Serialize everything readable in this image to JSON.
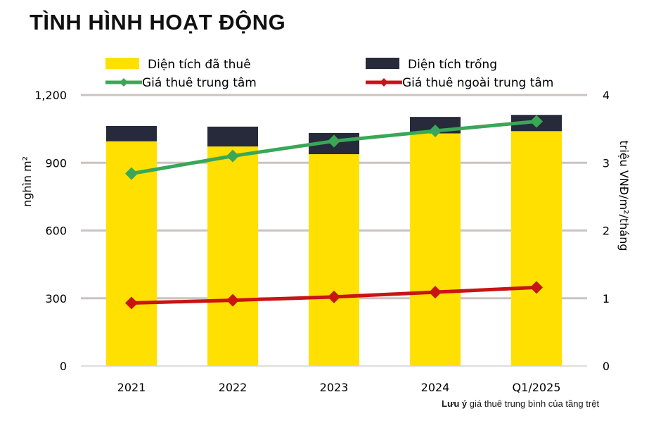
{
  "title": "TÌNH HÌNH HOẠT ĐỘNG",
  "note": {
    "bold": "Lưu ý",
    "text": " giá thuê trung bình của tầng trệt"
  },
  "chart_data": {
    "type": "bar",
    "stacked": true,
    "categories": [
      "2021",
      "2022",
      "2023",
      "2024",
      "Q1/2025"
    ],
    "ylabel": "nghìn m²",
    "y2label": "triệu VNĐ/m²/tháng",
    "ylim": [
      0,
      1200
    ],
    "y2lim": [
      0,
      4
    ],
    "yticks": [
      "0",
      "300",
      "600",
      "900",
      "1,200"
    ],
    "y2ticks": [
      "0",
      "1",
      "2",
      "3",
      "4"
    ],
    "grid": true,
    "legend_placement": "top",
    "series": [
      {
        "name": "Diện tích đã thuê",
        "type": "bar",
        "axis": "left",
        "color": "#FFE000",
        "values": [
          995,
          972,
          938,
          1030,
          1040
        ]
      },
      {
        "name": "Diện tích trống",
        "type": "bar",
        "axis": "left",
        "color": "#262A3B",
        "values": [
          68,
          88,
          94,
          73,
          72
        ]
      },
      {
        "name": "Giá thuê trung tâm",
        "type": "line",
        "axis": "right",
        "color": "#3AA757",
        "values": [
          2.84,
          3.1,
          3.32,
          3.47,
          3.61
        ]
      },
      {
        "name": "Giá thuê ngoài trung tâm",
        "type": "line",
        "axis": "right",
        "color": "#C81414",
        "values": [
          0.93,
          0.97,
          1.02,
          1.09,
          1.16
        ]
      }
    ]
  }
}
